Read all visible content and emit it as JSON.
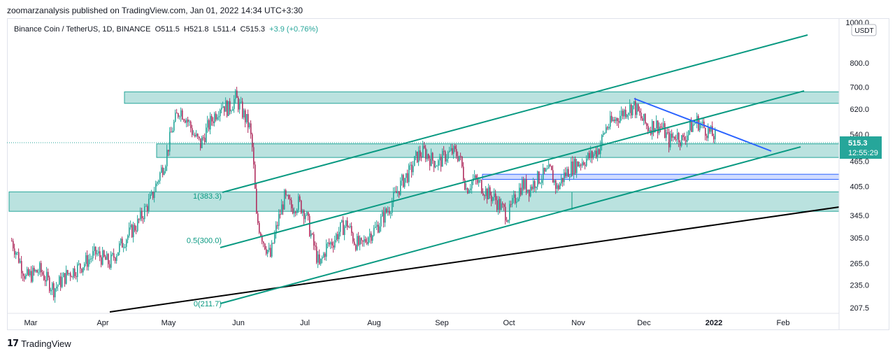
{
  "header": {
    "publisher": "zoomarzanalysis published on TradingView.com, Jan 01, 2022 14:34 UTC+3:30",
    "symbol": "Binance Coin / TetherUS, 1D, BINANCE",
    "open": "O511.5",
    "high": "H521.8",
    "low": "L511.4",
    "close": "C515.3",
    "change": "+3.9 (+0.76%)"
  },
  "footer": {
    "brand": "TradingView",
    "logo_icon": "tradingview-logo-icon"
  },
  "colors": {
    "up": "#26a69a",
    "down": "#b03060",
    "zone_fill": "#b2dfdb",
    "zone_stroke": "#26a69a",
    "channel": "#089981",
    "trendline": "#2962ff",
    "support": "#000000",
    "axis_text": "#131722"
  },
  "chart_data": {
    "type": "candlestick",
    "title": "",
    "xlabel": "",
    "ylabel": "",
    "scale": "log",
    "currency": "USDT",
    "ylim": [
      200,
      1000
    ],
    "y_ticks": [
      "1000.0",
      "800.0",
      "700.0",
      "620.0",
      "540.0",
      "465.0",
      "405.0",
      "345.0",
      "305.0",
      "265.0",
      "235.0",
      "207.5"
    ],
    "x_ticks": [
      "Mar",
      "Apr",
      "May",
      "Jun",
      "Jul",
      "Aug",
      "Sep",
      "Oct",
      "Nov",
      "Dec",
      "2022",
      "Feb"
    ],
    "last_price": "515.3",
    "countdown": "12:55:29",
    "fib_levels": [
      {
        "label": "1(383.3)",
        "value": 383.3
      },
      {
        "label": "0.5(300.0)",
        "value": 300.0
      },
      {
        "label": "0(211.7)",
        "value": 211.7
      }
    ],
    "zones": [
      {
        "name": "resistance-zone",
        "from": 640,
        "to": 682
      },
      {
        "name": "mid-zone",
        "from": 475,
        "to": 512
      },
      {
        "name": "support-zone",
        "from": 353,
        "to": 393
      },
      {
        "name": "blue-zone",
        "from": 421,
        "to": 433
      }
    ],
    "approx_close_path": [
      [
        0,
        300
      ],
      [
        10,
        245
      ],
      [
        20,
        255
      ],
      [
        30,
        230
      ],
      [
        40,
        250
      ],
      [
        50,
        262
      ],
      [
        60,
        280
      ],
      [
        70,
        265
      ],
      [
        80,
        300
      ],
      [
        90,
        330
      ],
      [
        100,
        380
      ],
      [
        110,
        470
      ],
      [
        115,
        560
      ],
      [
        120,
        620
      ],
      [
        125,
        590
      ],
      [
        130,
        540
      ],
      [
        135,
        510
      ],
      [
        140,
        560
      ],
      [
        145,
        600
      ],
      [
        150,
        640
      ],
      [
        155,
        620
      ],
      [
        160,
        660
      ],
      [
        165,
        610
      ],
      [
        170,
        560
      ],
      [
        172,
        500
      ],
      [
        175,
        340
      ],
      [
        180,
        300
      ],
      [
        185,
        275
      ],
      [
        190,
        330
      ],
      [
        195,
        380
      ],
      [
        200,
        360
      ],
      [
        205,
        370
      ],
      [
        210,
        350
      ],
      [
        215,
        300
      ],
      [
        220,
        260
      ],
      [
        225,
        290
      ],
      [
        230,
        300
      ],
      [
        235,
        320
      ],
      [
        240,
        330
      ],
      [
        245,
        300
      ],
      [
        250,
        290
      ],
      [
        255,
        310
      ],
      [
        260,
        320
      ],
      [
        265,
        340
      ],
      [
        270,
        360
      ],
      [
        275,
        390
      ],
      [
        280,
        420
      ],
      [
        285,
        440
      ],
      [
        290,
        480
      ],
      [
        295,
        490
      ],
      [
        300,
        470
      ],
      [
        305,
        460
      ],
      [
        310,
        480
      ],
      [
        315,
        490
      ],
      [
        320,
        480
      ],
      [
        325,
        400
      ],
      [
        330,
        420
      ],
      [
        335,
        410
      ],
      [
        340,
        390
      ],
      [
        345,
        380
      ],
      [
        350,
        360
      ],
      [
        355,
        345
      ],
      [
        360,
        380
      ],
      [
        365,
        410
      ],
      [
        370,
        400
      ],
      [
        375,
        420
      ],
      [
        380,
        430
      ],
      [
        385,
        440
      ],
      [
        390,
        400
      ],
      [
        395,
        430
      ],
      [
        400,
        450
      ],
      [
        405,
        460
      ],
      [
        410,
        470
      ],
      [
        415,
        480
      ],
      [
        420,
        500
      ],
      [
        425,
        560
      ],
      [
        430,
        580
      ],
      [
        435,
        600
      ],
      [
        440,
        620
      ],
      [
        445,
        630
      ],
      [
        450,
        590
      ],
      [
        455,
        560
      ],
      [
        460,
        570
      ],
      [
        465,
        560
      ],
      [
        470,
        520
      ],
      [
        475,
        540
      ],
      [
        480,
        520
      ],
      [
        485,
        560
      ],
      [
        490,
        580
      ],
      [
        495,
        560
      ],
      [
        500,
        540
      ],
      [
        505,
        530
      ],
      [
        510,
        520
      ],
      [
        515,
        515
      ]
    ]
  }
}
